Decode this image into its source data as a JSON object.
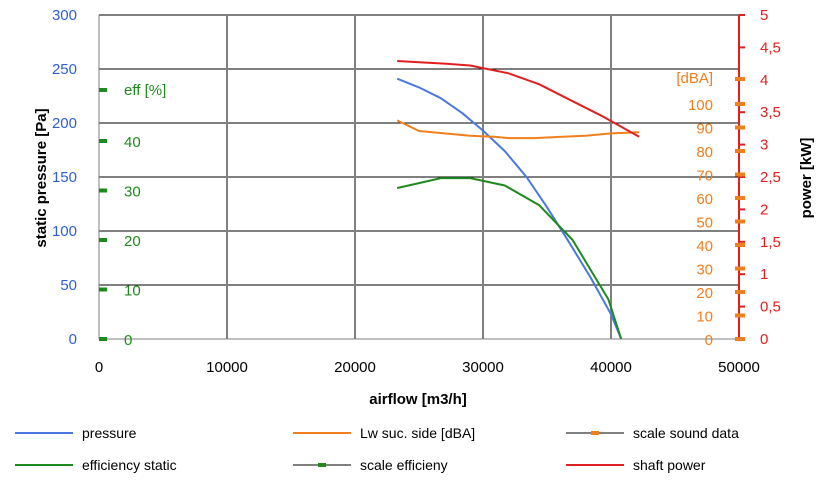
{
  "chart_data": {
    "type": "line",
    "xlabel": "airflow [m3/h]",
    "ylabel_left": "static pressure [Pa]",
    "ylabel_right": "power [kW]",
    "xlim": [
      0,
      50000
    ],
    "ylim_pressure": [
      0,
      300
    ],
    "ylim_power": [
      0,
      5
    ],
    "grid": true,
    "legend_position": "bottom",
    "x_ticks": [
      "0",
      "10000",
      "20000",
      "30000",
      "40000",
      "50000"
    ],
    "y_ticks_pressure": [
      "0",
      "50",
      "100",
      "150",
      "200",
      "250",
      "300"
    ],
    "y_ticks_power": [
      "0",
      "0,5",
      "1",
      "1,5",
      "2",
      "2,5",
      "3",
      "3,5",
      "4",
      "4,5",
      "5"
    ],
    "efficiency_scale": {
      "title": "eff [%]",
      "color": "#1e8a1e",
      "ticks": [
        "0",
        "10",
        "20",
        "30",
        "40"
      ],
      "values": [
        0,
        10,
        20,
        30,
        40
      ]
    },
    "sound_scale": {
      "title": "[dBA]",
      "color": "#f07f1e",
      "ticks": [
        "0",
        "10",
        "20",
        "30",
        "40",
        "50",
        "60",
        "70",
        "80",
        "90",
        "100"
      ],
      "values": [
        0,
        10,
        20,
        30,
        40,
        50,
        60,
        70,
        80,
        90,
        100
      ]
    },
    "series": [
      {
        "name": "pressure",
        "color": "#4a78e0",
        "axis": "pressure",
        "x": [
          23300,
          25000,
          26700,
          28400,
          30000,
          31700,
          33400,
          35000,
          36700,
          38400,
          40000,
          40800
        ],
        "y": [
          241,
          233,
          223,
          209,
          193,
          174,
          150,
          122,
          90,
          57,
          23,
          0
        ]
      },
      {
        "name": "Lw suc. side [dBA]",
        "color": "#f07f1e",
        "axis": "sound",
        "x": [
          23300,
          25000,
          27000,
          29000,
          31000,
          32000,
          34000,
          36000,
          38000,
          40000,
          42200
        ],
        "y": [
          93,
          88.5,
          87.5,
          86.5,
          86,
          85.5,
          85.5,
          86,
          86.5,
          87.5,
          88
        ]
      },
      {
        "name": "scale sound data",
        "color": "#f07f1e",
        "axis": "marker"
      },
      {
        "name": "efficiency static",
        "color": "#1e8a1e",
        "axis": "efficiency",
        "x": [
          23300,
          25000,
          26700,
          29000,
          31700,
          34400,
          37000,
          39800,
          40800
        ],
        "y": [
          30.5,
          31.5,
          32.5,
          32.5,
          31,
          27,
          20,
          8,
          0
        ]
      },
      {
        "name": "scale efficieny",
        "color": "#1e8a1e",
        "axis": "marker"
      },
      {
        "name": "shaft power",
        "color": "#e02020",
        "axis": "power",
        "x": [
          23300,
          25000,
          27000,
          29000,
          30000,
          32000,
          34400,
          37000,
          39400,
          42200
        ],
        "y": [
          4.29,
          4.27,
          4.25,
          4.22,
          4.18,
          4.1,
          3.93,
          3.67,
          3.43,
          3.12
        ]
      }
    ]
  }
}
